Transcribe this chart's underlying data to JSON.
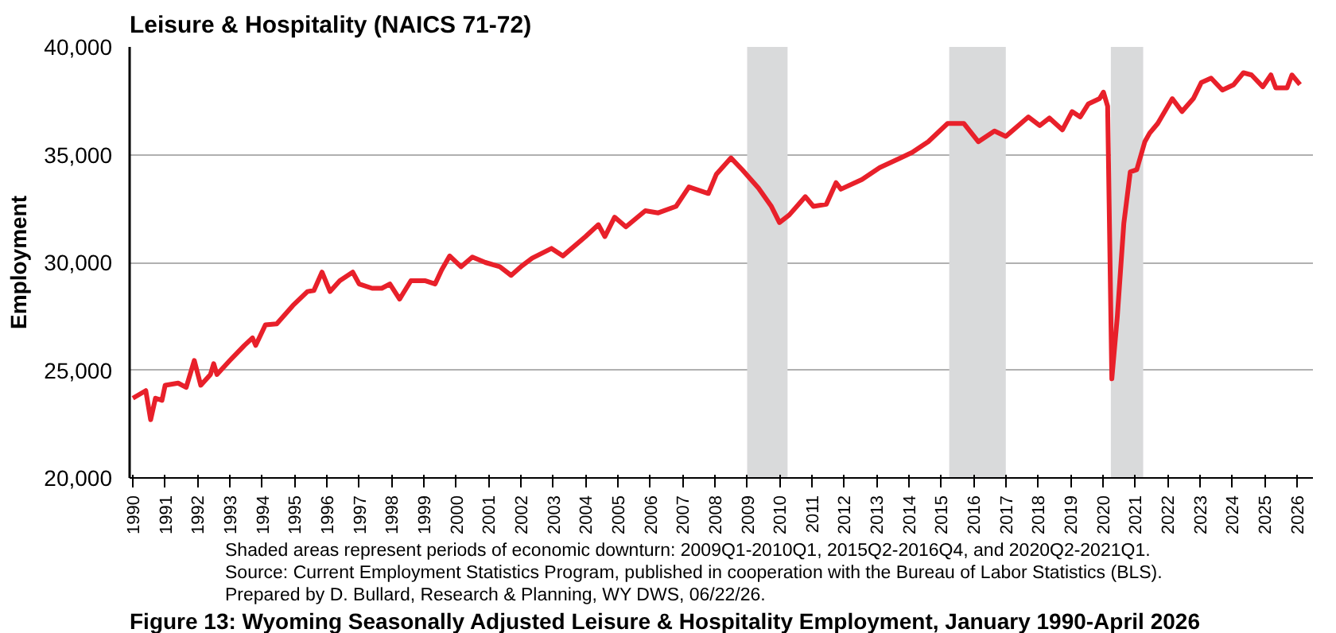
{
  "chart_data": {
    "type": "line",
    "title": "Leisure & Hospitality (NAICS 71-72)",
    "ylabel": "Employment",
    "x": [
      1990.0,
      1990.4,
      1990.55,
      1990.7,
      1990.9,
      1991.0,
      1991.4,
      1991.65,
      1991.9,
      1992.1,
      1992.4,
      1992.5,
      1992.6,
      1993.0,
      1993.45,
      1993.7,
      1993.8,
      1994.1,
      1994.45,
      1994.95,
      1995.4,
      1995.6,
      1995.85,
      1996.1,
      1996.4,
      1996.8,
      1997.0,
      1997.4,
      1997.7,
      1997.95,
      1998.25,
      1998.6,
      1999.05,
      1999.35,
      1999.55,
      1999.8,
      2000.15,
      2000.5,
      2000.9,
      2001.35,
      2001.7,
      2002.0,
      2002.35,
      2002.95,
      2003.3,
      2004.0,
      2004.4,
      2004.6,
      2004.9,
      2005.25,
      2005.85,
      2006.25,
      2006.8,
      2007.2,
      2007.8,
      2008.05,
      2008.5,
      2008.85,
      2009.35,
      2009.75,
      2010.0,
      2010.3,
      2010.8,
      2011.05,
      2011.45,
      2011.75,
      2011.9,
      2012.55,
      2013.1,
      2013.75,
      2014.1,
      2014.45,
      2014.6,
      2015.2,
      2015.7,
      2016.15,
      2016.65,
      2017.0,
      2017.7,
      2018.05,
      2018.35,
      2018.75,
      2019.05,
      2019.3,
      2019.55,
      2019.9,
      2020.02,
      2020.15,
      2020.28,
      2020.45,
      2020.65,
      2020.85,
      2021.05,
      2021.3,
      2021.45,
      2021.7,
      2022.15,
      2022.45,
      2022.8,
      2023.05,
      2023.35,
      2023.7,
      2024.05,
      2024.35,
      2024.6,
      2024.95,
      2025.2,
      2025.35,
      2025.7,
      2025.85,
      2026.1
    ],
    "series": [
      {
        "color": "#e8202a",
        "values": [
          23700,
          24050,
          22700,
          23700,
          23600,
          24300,
          24400,
          24200,
          25450,
          24300,
          24800,
          25300,
          24800,
          25450,
          26150,
          26500,
          26150,
          27100,
          27150,
          28000,
          28650,
          28700,
          29550,
          28650,
          29150,
          29550,
          29000,
          28800,
          28800,
          29000,
          28300,
          29150,
          29150,
          29000,
          29650,
          30300,
          29800,
          30250,
          30000,
          29800,
          29400,
          29800,
          30200,
          30650,
          30300,
          31200,
          31750,
          31200,
          32100,
          31650,
          32400,
          32300,
          32600,
          33500,
          33200,
          34100,
          34850,
          34300,
          33450,
          32600,
          31850,
          32200,
          33050,
          32600,
          32700,
          33700,
          33400,
          33850,
          34400,
          34850,
          35100,
          35450,
          35600,
          36450,
          36450,
          35600,
          36100,
          35850,
          36750,
          36350,
          36700,
          36150,
          37000,
          36750,
          37350,
          37600,
          37900,
          37250,
          24600,
          27500,
          31800,
          34200,
          34300,
          35600,
          36000,
          36450,
          37600,
          37000,
          37600,
          38350,
          38550,
          38000,
          38250,
          38800,
          38700,
          38150,
          38700,
          38100,
          38100,
          38700,
          38250
        ]
      }
    ],
    "xlim": [
      1989.9,
      2026.5
    ],
    "xticks": [
      1990,
      1991,
      1992,
      1993,
      1994,
      1995,
      1996,
      1997,
      1998,
      1999,
      2000,
      2001,
      2002,
      2003,
      2004,
      2005,
      2006,
      2007,
      2008,
      2009,
      2010,
      2011,
      2012,
      2013,
      2014,
      2015,
      2016,
      2017,
      2018,
      2019,
      2020,
      2021,
      2022,
      2023,
      2024,
      2025,
      2026
    ],
    "ylim": [
      20000,
      40000
    ],
    "yticks": [
      {
        "value": 20000,
        "label": "20,000"
      },
      {
        "value": 25000,
        "label": "25,000"
      },
      {
        "value": 30000,
        "label": "30,000"
      },
      {
        "value": 35000,
        "label": "35,000"
      },
      {
        "value": 40000,
        "label": "40,000"
      }
    ],
    "grid": "y",
    "bands": [
      {
        "axis": "x",
        "from": 2009.0,
        "to": 2010.25,
        "color": "#d9dadb"
      },
      {
        "axis": "x",
        "from": 2015.25,
        "to": 2017.0,
        "color": "#d9dadb"
      },
      {
        "axis": "x",
        "from": 2020.25,
        "to": 2021.25,
        "color": "#d9dadb"
      }
    ],
    "annotations": [
      "Shaded areas represent periods of economic downturn: 2009Q1-2010Q1, 2015Q2-2016Q4, and 2020Q2-2021Q1.",
      "Source: Current Employment Statistics Program, published in cooperation with the Bureau of Labor Statistics (BLS).",
      "Prepared by D. Bullard, Research & Planning, WY DWS, 06/22/26.",
      "Figure 13: Wyoming Seasonally Adjusted Leisure & Hospitality Employment, January 1990-April 2026"
    ]
  }
}
